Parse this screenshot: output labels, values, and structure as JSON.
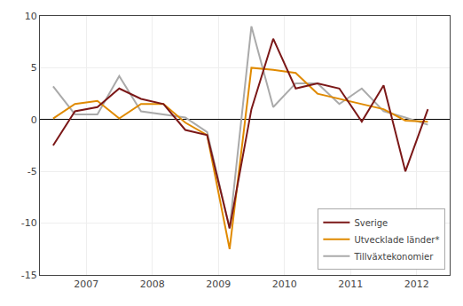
{
  "chart_data": {
    "type": "line",
    "x": [
      2006.5,
      2006.83,
      2007.17,
      2007.5,
      2007.83,
      2008.17,
      2008.5,
      2008.83,
      2009.17,
      2009.5,
      2009.83,
      2010.17,
      2010.5,
      2010.83,
      2011.17,
      2011.5,
      2011.83,
      2012.17
    ],
    "series": [
      {
        "name": "Tillväxtekonomier",
        "color": "#AAAAAA",
        "values": [
          3.2,
          0.5,
          0.5,
          4.2,
          0.8,
          0.5,
          0.2,
          -1.2,
          -10.5,
          9.0,
          1.2,
          3.5,
          3.5,
          1.5,
          3.0,
          0.8,
          0.2,
          -0.5
        ]
      },
      {
        "name": "Utvecklade länder*",
        "color": "#E08A00",
        "values": [
          0.1,
          1.5,
          1.8,
          0.1,
          1.5,
          1.5,
          -0.3,
          -1.5,
          -12.5,
          5.0,
          4.8,
          4.5,
          2.5,
          2.0,
          1.5,
          1.0,
          -0.1,
          -0.2
        ]
      },
      {
        "name": "Sverige",
        "color": "#7B1818",
        "values": [
          -2.5,
          0.8,
          1.2,
          3.0,
          2.0,
          1.5,
          -1.0,
          -1.5,
          -10.5,
          1.0,
          7.8,
          3.0,
          3.5,
          3.0,
          -0.2,
          3.3,
          -5.0,
          1.0
        ]
      }
    ],
    "xlim": [
      2006.3,
      2012.5
    ],
    "xticks": [
      2007,
      2008,
      2009,
      2010,
      2011,
      2012
    ],
    "ylim": [
      -15,
      10
    ],
    "yticks": [
      -15,
      -10,
      -5,
      0,
      5,
      10
    ],
    "grid": true,
    "legend": "lower right"
  }
}
